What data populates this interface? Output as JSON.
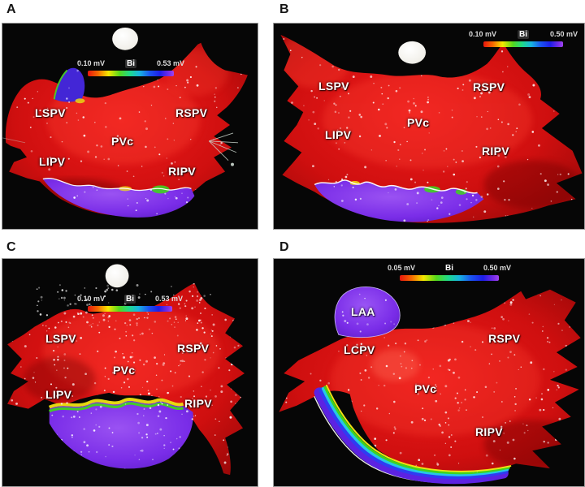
{
  "figure": {
    "description": "Four-panel electroanatomic bipolar voltage maps of the left atrium",
    "colors": {
      "panel_background": "#060606",
      "page_background": "#ffffff",
      "low_voltage_red": "#cf0f0f",
      "high_voltage_purple": "#7a2de8",
      "label_text": "#ffffff"
    },
    "panels": [
      {
        "letter": "A",
        "scale_bar": {
          "min": "0.10 mV",
          "label": "Bi",
          "max": "0.53 mV"
        },
        "anatomy_labels": [
          "LSPV",
          "RSPV",
          "PVc",
          "LIPV",
          "RIPV"
        ]
      },
      {
        "letter": "B",
        "scale_bar": {
          "min": "0.10 mV",
          "label": "Bi",
          "max": "0.50 mV"
        },
        "anatomy_labels": [
          "LSPV",
          "RSPV",
          "PVc",
          "LIPV",
          "RIPV"
        ]
      },
      {
        "letter": "C",
        "scale_bar": {
          "min": "0.10 mV",
          "label": "Bi",
          "max": "0.53 mV"
        },
        "anatomy_labels": [
          "LSPV",
          "RSPV",
          "PVc",
          "LIPV",
          "RIPV"
        ]
      },
      {
        "letter": "D",
        "scale_bar": {
          "min": "0.05 mV",
          "label": "Bi",
          "max": "0.50 mV"
        },
        "anatomy_labels": [
          "LAA",
          "LCPV",
          "RSPV",
          "PVc",
          "RIPV"
        ]
      }
    ]
  }
}
